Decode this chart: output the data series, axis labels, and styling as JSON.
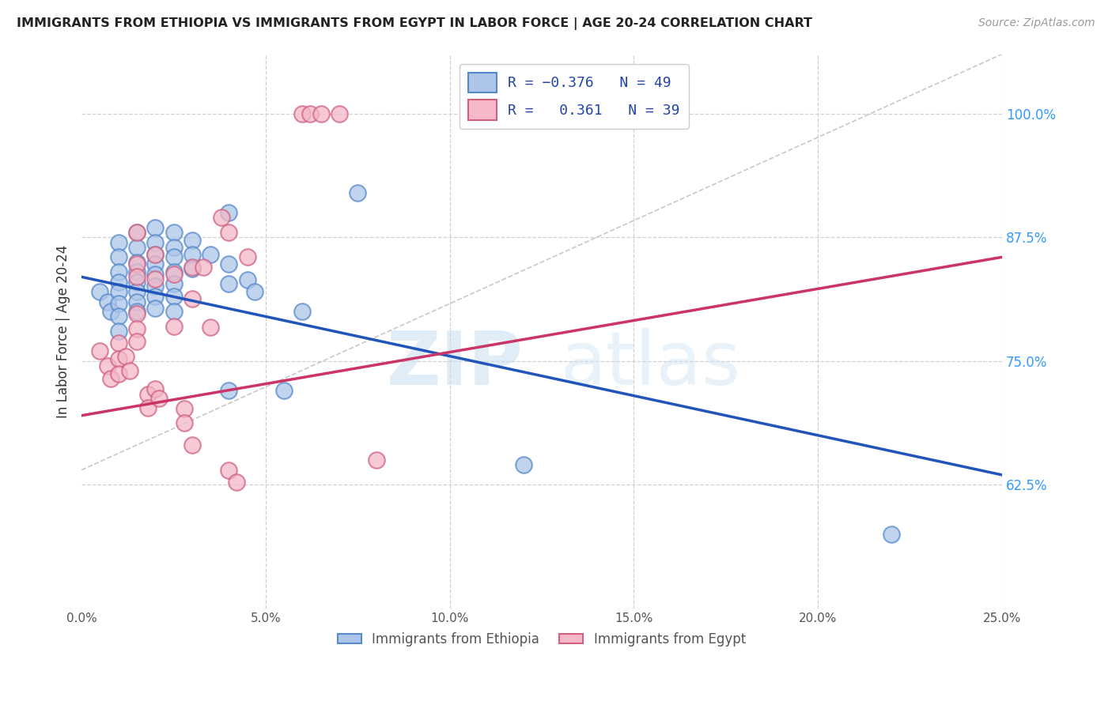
{
  "title": "IMMIGRANTS FROM ETHIOPIA VS IMMIGRANTS FROM EGYPT IN LABOR FORCE | AGE 20-24 CORRELATION CHART",
  "source": "Source: ZipAtlas.com",
  "ylabel": "In Labor Force | Age 20-24",
  "x_tick_labels": [
    "0.0%",
    "5.0%",
    "10.0%",
    "15.0%",
    "20.0%",
    "25.0%"
  ],
  "x_tick_values": [
    0.0,
    0.05,
    0.1,
    0.15,
    0.2,
    0.25
  ],
  "y_tick_labels": [
    "62.5%",
    "75.0%",
    "87.5%",
    "100.0%"
  ],
  "y_tick_values": [
    0.625,
    0.75,
    0.875,
    1.0
  ],
  "xlim": [
    0.0,
    0.25
  ],
  "ylim": [
    0.5,
    1.06
  ],
  "ethiopia_color": "#adc6e8",
  "ethiopia_edge": "#5588cc",
  "egypt_color": "#f4b8c8",
  "egypt_edge": "#d06080",
  "line_ethiopia_color": "#2255bb",
  "line_egypt_color": "#cc3366",
  "diagonal_color": "#bbbbbb",
  "watermark_zip": "ZIP",
  "watermark_atlas": "atlas",
  "ethiopia_line_x": [
    0.0,
    0.25
  ],
  "ethiopia_line_y": [
    0.835,
    0.635
  ],
  "egypt_line_x": [
    0.0,
    0.25
  ],
  "egypt_line_y": [
    0.695,
    0.855
  ],
  "ethiopia_points": [
    [
      0.005,
      0.82
    ],
    [
      0.007,
      0.81
    ],
    [
      0.008,
      0.8
    ],
    [
      0.01,
      0.87
    ],
    [
      0.01,
      0.855
    ],
    [
      0.01,
      0.84
    ],
    [
      0.01,
      0.83
    ],
    [
      0.01,
      0.82
    ],
    [
      0.01,
      0.808
    ],
    [
      0.01,
      0.795
    ],
    [
      0.01,
      0.78
    ],
    [
      0.015,
      0.88
    ],
    [
      0.015,
      0.865
    ],
    [
      0.015,
      0.85
    ],
    [
      0.015,
      0.84
    ],
    [
      0.015,
      0.83
    ],
    [
      0.015,
      0.82
    ],
    [
      0.015,
      0.81
    ],
    [
      0.015,
      0.8
    ],
    [
      0.02,
      0.885
    ],
    [
      0.02,
      0.87
    ],
    [
      0.02,
      0.858
    ],
    [
      0.02,
      0.848
    ],
    [
      0.02,
      0.838
    ],
    [
      0.02,
      0.826
    ],
    [
      0.02,
      0.815
    ],
    [
      0.02,
      0.803
    ],
    [
      0.025,
      0.88
    ],
    [
      0.025,
      0.865
    ],
    [
      0.025,
      0.855
    ],
    [
      0.025,
      0.84
    ],
    [
      0.025,
      0.828
    ],
    [
      0.025,
      0.815
    ],
    [
      0.025,
      0.8
    ],
    [
      0.03,
      0.872
    ],
    [
      0.03,
      0.858
    ],
    [
      0.03,
      0.843
    ],
    [
      0.035,
      0.858
    ],
    [
      0.04,
      0.9
    ],
    [
      0.04,
      0.848
    ],
    [
      0.04,
      0.828
    ],
    [
      0.04,
      0.72
    ],
    [
      0.045,
      0.832
    ],
    [
      0.047,
      0.82
    ],
    [
      0.055,
      0.72
    ],
    [
      0.06,
      0.8
    ],
    [
      0.075,
      0.92
    ],
    [
      0.12,
      0.645
    ],
    [
      0.22,
      0.575
    ]
  ],
  "egypt_points": [
    [
      0.005,
      0.76
    ],
    [
      0.007,
      0.745
    ],
    [
      0.008,
      0.732
    ],
    [
      0.01,
      0.768
    ],
    [
      0.01,
      0.752
    ],
    [
      0.01,
      0.737
    ],
    [
      0.012,
      0.755
    ],
    [
      0.013,
      0.74
    ],
    [
      0.015,
      0.88
    ],
    [
      0.015,
      0.848
    ],
    [
      0.015,
      0.835
    ],
    [
      0.015,
      0.798
    ],
    [
      0.015,
      0.783
    ],
    [
      0.015,
      0.77
    ],
    [
      0.018,
      0.716
    ],
    [
      0.018,
      0.703
    ],
    [
      0.02,
      0.858
    ],
    [
      0.02,
      0.833
    ],
    [
      0.02,
      0.722
    ],
    [
      0.021,
      0.712
    ],
    [
      0.025,
      0.838
    ],
    [
      0.025,
      0.785
    ],
    [
      0.03,
      0.845
    ],
    [
      0.03,
      0.813
    ],
    [
      0.03,
      0.665
    ],
    [
      0.033,
      0.845
    ],
    [
      0.035,
      0.784
    ],
    [
      0.038,
      0.895
    ],
    [
      0.04,
      0.88
    ],
    [
      0.045,
      0.855
    ],
    [
      0.06,
      1.0
    ],
    [
      0.062,
      1.0
    ],
    [
      0.065,
      1.0
    ],
    [
      0.07,
      1.0
    ],
    [
      0.08,
      0.65
    ],
    [
      0.028,
      0.702
    ],
    [
      0.028,
      0.688
    ],
    [
      0.04,
      0.64
    ],
    [
      0.042,
      0.628
    ]
  ]
}
